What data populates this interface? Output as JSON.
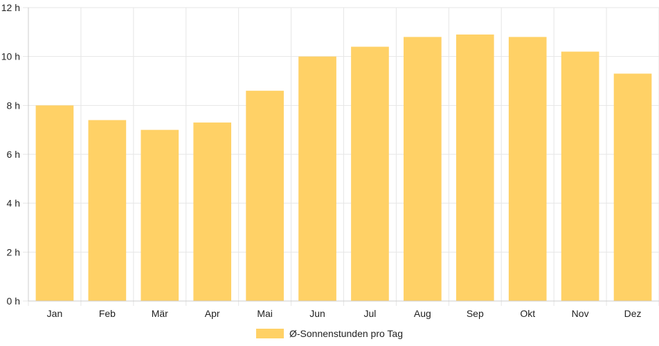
{
  "chart_data": {
    "type": "bar",
    "categories": [
      "Jan",
      "Feb",
      "Mär",
      "Apr",
      "Mai",
      "Jun",
      "Jul",
      "Aug",
      "Sep",
      "Okt",
      "Nov",
      "Dez"
    ],
    "series": [
      {
        "name": "Ø-Sonnenstunden pro Tag",
        "values": [
          8.0,
          7.4,
          7.0,
          7.3,
          8.6,
          10.0,
          10.4,
          10.8,
          10.9,
          10.8,
          10.2,
          9.3
        ]
      }
    ],
    "y_ticks": [
      "0 h",
      "2 h",
      "4 h",
      "6 h",
      "8 h",
      "10 h",
      "12 h"
    ],
    "ylim": [
      0,
      12
    ],
    "grid": true,
    "legend_position": "bottom",
    "colors": {
      "bar": "#ffd166",
      "grid": "#e6e6e6",
      "axis": "#cccccc"
    }
  }
}
